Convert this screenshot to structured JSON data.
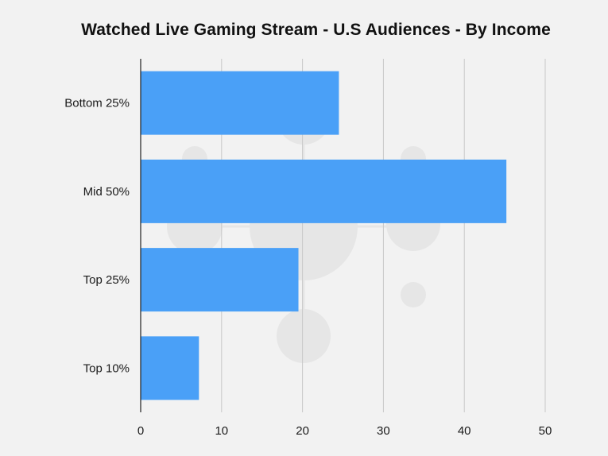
{
  "chart_data": {
    "type": "bar",
    "orientation": "horizontal",
    "title": "Watched Live Gaming Stream - U.S Audiences - By Income",
    "categories": [
      "Bottom 25%",
      "Mid 50%",
      "Top 25%",
      "Top 10%"
    ],
    "values": [
      24.5,
      45.2,
      19.5,
      7.2
    ],
    "xlabel": "",
    "ylabel": "",
    "xlim": [
      0,
      50
    ],
    "xticks": [
      "0",
      "10",
      "20",
      "30",
      "40",
      "50"
    ],
    "grid": true,
    "bar_color": "#4aa0f7",
    "grid_color": "#c8c8c8",
    "axis_color": "#222222",
    "watermark_color": "#e6e6e6"
  }
}
